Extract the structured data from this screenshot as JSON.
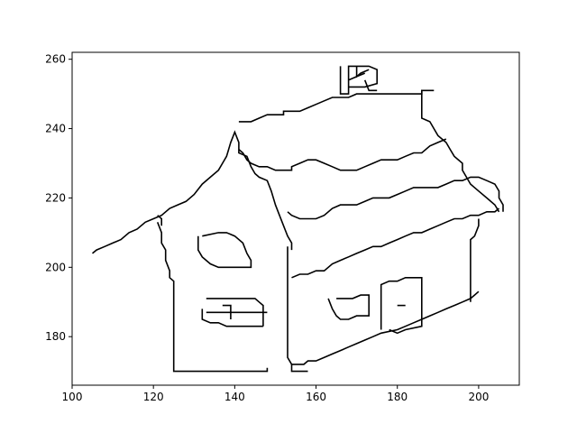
{
  "chart_data": {
    "type": "line",
    "title": "",
    "xlabel": "",
    "ylabel": "",
    "xlim": [
      100,
      210
    ],
    "ylim": [
      166,
      262
    ],
    "grid": false,
    "legend": "none",
    "x_ticks": [
      100,
      120,
      140,
      160,
      180,
      200
    ],
    "y_ticks": [
      180,
      200,
      220,
      240,
      260
    ],
    "x_tick_labels": [
      "100",
      "120",
      "140",
      "160",
      "180",
      "200"
    ],
    "y_tick_labels": [
      "180",
      "200",
      "220",
      "240",
      "260"
    ],
    "line_color": "#000000",
    "series": [
      {
        "points": [
          [
            105,
            204
          ],
          [
            106,
            205
          ],
          [
            108,
            206
          ],
          [
            110,
            207
          ],
          [
            112,
            208
          ],
          [
            114,
            210
          ],
          [
            116,
            211
          ],
          [
            118,
            213
          ],
          [
            120,
            214
          ],
          [
            122,
            215
          ],
          [
            124,
            217
          ],
          [
            126,
            218
          ],
          [
            128,
            219
          ],
          [
            130,
            221
          ],
          [
            132,
            224
          ],
          [
            134,
            226
          ],
          [
            136,
            228
          ],
          [
            137,
            230
          ],
          [
            138,
            232
          ],
          [
            139,
            236
          ],
          [
            140,
            239
          ],
          [
            141,
            236
          ],
          [
            141,
            233
          ],
          [
            143,
            232
          ],
          [
            144,
            229
          ],
          [
            145,
            227
          ],
          [
            146,
            226
          ],
          [
            148,
            225
          ],
          [
            149,
            222
          ],
          [
            150,
            218
          ],
          [
            151,
            215
          ],
          [
            152,
            212
          ],
          [
            153,
            209
          ],
          [
            154,
            207
          ],
          [
            154,
            205
          ]
        ]
      },
      {
        "points": [
          [
            121,
            215
          ],
          [
            122,
            214
          ],
          [
            122,
            212
          ]
        ]
      },
      {
        "points": [
          [
            121,
            213
          ],
          [
            122,
            210
          ],
          [
            122,
            207
          ],
          [
            123,
            205
          ],
          [
            123,
            202
          ],
          [
            124,
            199
          ],
          [
            124,
            197
          ],
          [
            125,
            196
          ],
          [
            125,
            170
          ],
          [
            148,
            170
          ],
          [
            148,
            171
          ]
        ]
      },
      {
        "points": [
          [
            141,
            242
          ],
          [
            144,
            242
          ],
          [
            146,
            243
          ],
          [
            148,
            244
          ],
          [
            152,
            244
          ],
          [
            152,
            245
          ],
          [
            156,
            245
          ],
          [
            158,
            246
          ],
          [
            160,
            247
          ],
          [
            162,
            248
          ],
          [
            164,
            249
          ],
          [
            168,
            249
          ],
          [
            170,
            250
          ],
          [
            186,
            250
          ],
          [
            186,
            251
          ],
          [
            189,
            251
          ]
        ]
      },
      {
        "points": [
          [
            141,
            234
          ],
          [
            142,
            233
          ],
          [
            143,
            231
          ],
          [
            144,
            230
          ],
          [
            146,
            229
          ],
          [
            148,
            229
          ],
          [
            150,
            228
          ],
          [
            154,
            228
          ],
          [
            154,
            229
          ],
          [
            156,
            230
          ],
          [
            158,
            231
          ],
          [
            160,
            231
          ],
          [
            162,
            230
          ],
          [
            164,
            229
          ],
          [
            166,
            228
          ],
          [
            170,
            228
          ],
          [
            172,
            229
          ],
          [
            174,
            230
          ],
          [
            176,
            231
          ],
          [
            178,
            231
          ],
          [
            180,
            231
          ],
          [
            182,
            232
          ],
          [
            184,
            233
          ],
          [
            186,
            233
          ],
          [
            188,
            235
          ],
          [
            190,
            236
          ],
          [
            192,
            237
          ]
        ]
      },
      {
        "points": [
          [
            186,
            251
          ],
          [
            186,
            243
          ],
          [
            188,
            242
          ],
          [
            189,
            240
          ],
          [
            190,
            238
          ],
          [
            192,
            236
          ],
          [
            193,
            234
          ],
          [
            194,
            232
          ],
          [
            196,
            230
          ],
          [
            196,
            228
          ],
          [
            197,
            226
          ],
          [
            198,
            224
          ],
          [
            200,
            222
          ],
          [
            202,
            220
          ],
          [
            204,
            218
          ],
          [
            205,
            216
          ]
        ]
      },
      {
        "points": [
          [
            153,
            216
          ],
          [
            154,
            215
          ],
          [
            156,
            214
          ],
          [
            160,
            214
          ],
          [
            162,
            215
          ],
          [
            164,
            217
          ],
          [
            166,
            218
          ],
          [
            170,
            218
          ],
          [
            172,
            219
          ],
          [
            174,
            220
          ],
          [
            178,
            220
          ],
          [
            180,
            221
          ],
          [
            182,
            222
          ],
          [
            184,
            223
          ],
          [
            190,
            223
          ],
          [
            192,
            224
          ],
          [
            194,
            225
          ],
          [
            196,
            225
          ],
          [
            198,
            226
          ],
          [
            200,
            226
          ],
          [
            202,
            225
          ],
          [
            204,
            224
          ],
          [
            205,
            222
          ],
          [
            205,
            220
          ],
          [
            206,
            218
          ],
          [
            206,
            216
          ]
        ]
      },
      {
        "points": [
          [
            154,
            197
          ],
          [
            156,
            198
          ],
          [
            158,
            198
          ],
          [
            160,
            199
          ],
          [
            162,
            199
          ],
          [
            164,
            201
          ],
          [
            166,
            202
          ],
          [
            168,
            203
          ],
          [
            170,
            204
          ],
          [
            172,
            205
          ],
          [
            174,
            206
          ],
          [
            176,
            206
          ],
          [
            178,
            207
          ],
          [
            180,
            208
          ],
          [
            182,
            209
          ],
          [
            184,
            210
          ],
          [
            186,
            210
          ],
          [
            188,
            211
          ],
          [
            190,
            212
          ],
          [
            192,
            213
          ],
          [
            194,
            214
          ],
          [
            196,
            214
          ],
          [
            198,
            215
          ],
          [
            200,
            215
          ],
          [
            202,
            216
          ],
          [
            204,
            216
          ],
          [
            205,
            217
          ]
        ]
      },
      {
        "points": [
          [
            153,
            206
          ],
          [
            153,
            174
          ],
          [
            154,
            172
          ],
          [
            157,
            172
          ],
          [
            158,
            173
          ],
          [
            160,
            173
          ],
          [
            162,
            174
          ],
          [
            164,
            175
          ],
          [
            166,
            176
          ],
          [
            168,
            177
          ],
          [
            170,
            178
          ],
          [
            172,
            179
          ],
          [
            174,
            180
          ],
          [
            176,
            181
          ],
          [
            180,
            182
          ],
          [
            182,
            183
          ],
          [
            184,
            184
          ],
          [
            186,
            185
          ],
          [
            188,
            186
          ],
          [
            190,
            187
          ],
          [
            192,
            188
          ],
          [
            194,
            189
          ],
          [
            196,
            190
          ],
          [
            198,
            191
          ],
          [
            199,
            192
          ],
          [
            200,
            193
          ]
        ]
      },
      {
        "points": [
          [
            198,
            190
          ],
          [
            198,
            208
          ],
          [
            199,
            209
          ],
          [
            200,
            212
          ],
          [
            200,
            214
          ]
        ]
      },
      {
        "points": [
          [
            154,
            172
          ],
          [
            154,
            170
          ],
          [
            158,
            170
          ]
        ]
      },
      {
        "points": [
          [
            132,
            209
          ],
          [
            136,
            210
          ],
          [
            138,
            210
          ],
          [
            140,
            209
          ],
          [
            142,
            207
          ],
          [
            143,
            204
          ],
          [
            144,
            202
          ],
          [
            144,
            200
          ],
          [
            136,
            200
          ],
          [
            134,
            201
          ],
          [
            132,
            203
          ],
          [
            131,
            205
          ],
          [
            131,
            209
          ]
        ]
      },
      {
        "points": [
          [
            133,
            191
          ],
          [
            145,
            191
          ],
          [
            146,
            190
          ],
          [
            147,
            189
          ],
          [
            147,
            183
          ]
        ]
      },
      {
        "points": [
          [
            132,
            188
          ],
          [
            132,
            185
          ],
          [
            134,
            184
          ],
          [
            136,
            184
          ],
          [
            138,
            183
          ],
          [
            140,
            183
          ],
          [
            142,
            183
          ],
          [
            147,
            183
          ]
        ]
      },
      {
        "points": [
          [
            133,
            187
          ],
          [
            148,
            187
          ]
        ]
      },
      {
        "points": [
          [
            137,
            189
          ],
          [
            139,
            189
          ],
          [
            139,
            185
          ]
        ]
      },
      {
        "points": [
          [
            165,
            191
          ],
          [
            169,
            191
          ],
          [
            171,
            192
          ],
          [
            173,
            192
          ],
          [
            173,
            186
          ],
          [
            170,
            186
          ],
          [
            168,
            185
          ],
          [
            166,
            185
          ],
          [
            165,
            186
          ],
          [
            164,
            188
          ],
          [
            163,
            191
          ]
        ]
      },
      {
        "points": [
          [
            176,
            182
          ],
          [
            176,
            195
          ],
          [
            178,
            196
          ],
          [
            180,
            196
          ],
          [
            182,
            197
          ],
          [
            186,
            197
          ],
          [
            186,
            183
          ],
          [
            182,
            182
          ],
          [
            180,
            181
          ],
          [
            178,
            182
          ]
        ]
      },
      {
        "points": [
          [
            180,
            189
          ],
          [
            182,
            189
          ]
        ]
      },
      {
        "points": [
          [
            166,
            258
          ],
          [
            166,
            256
          ],
          [
            166,
            250
          ],
          [
            168,
            250
          ],
          [
            168,
            258
          ],
          [
            173,
            258
          ],
          [
            175,
            257
          ],
          [
            175,
            255
          ],
          [
            175,
            253
          ],
          [
            172,
            252
          ],
          [
            170,
            252
          ],
          [
            168,
            252
          ],
          [
            168,
            254
          ],
          [
            170,
            255
          ],
          [
            172,
            256
          ]
        ]
      },
      {
        "points": [
          [
            170,
            258
          ],
          [
            170,
            255
          ],
          [
            171,
            256
          ],
          [
            173,
            257
          ]
        ]
      },
      {
        "points": [
          [
            172,
            254
          ],
          [
            173,
            251
          ],
          [
            175,
            251
          ]
        ]
      }
    ]
  }
}
